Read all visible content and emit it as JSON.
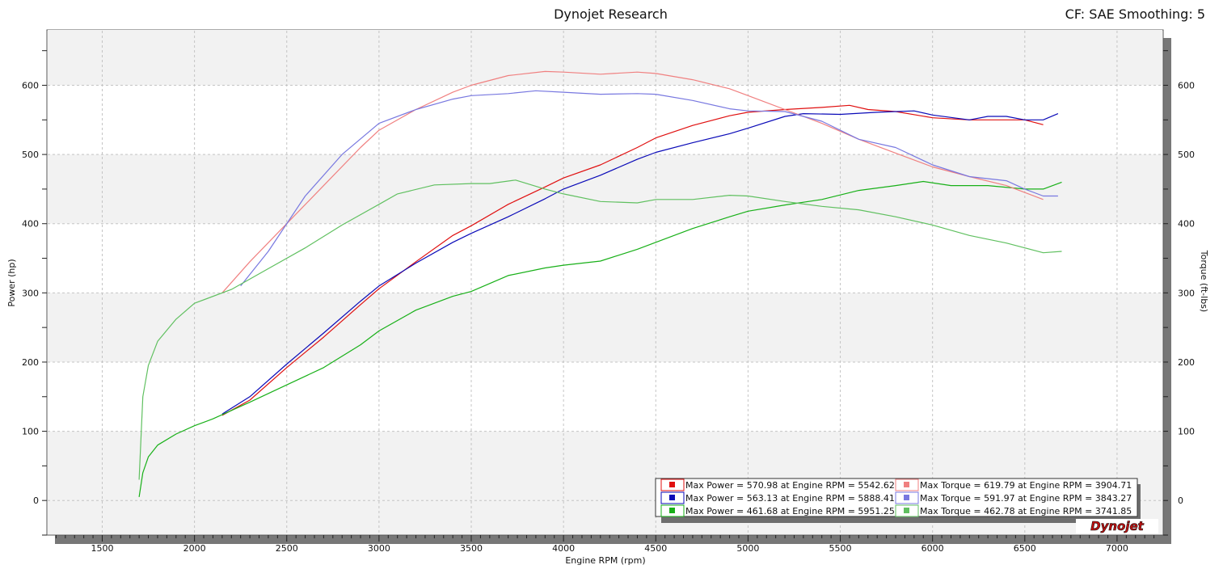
{
  "header": {
    "title": "Dynojet Research",
    "cf_smoothing": "CF: SAE Smoothing: 5"
  },
  "logo_text": "Dynojet",
  "chart_data": {
    "type": "line",
    "title": "Dynojet Research",
    "xlabel": "Engine RPM (rpm)",
    "ylabel_left": "Power (hp)",
    "ylabel_right": "Torque (ft-lbs)",
    "xlim": [
      1200,
      7250
    ],
    "ylim": [
      -50,
      680
    ],
    "x_ticks": [
      1500,
      2000,
      2500,
      3000,
      3500,
      4000,
      4500,
      5000,
      5500,
      6000,
      6500,
      7000
    ],
    "y_ticks": [
      0,
      100,
      200,
      300,
      400,
      500,
      600
    ],
    "grid": true,
    "legend_placement": "bottom-right",
    "series": [
      {
        "color": "#e01010",
        "kind": "power",
        "legend": "Max Power = 570.98 at Engine RPM = 5542.62",
        "points": [
          [
            2150,
            123
          ],
          [
            2300,
            145
          ],
          [
            2500,
            192
          ],
          [
            2700,
            236
          ],
          [
            2900,
            283
          ],
          [
            3000,
            306
          ],
          [
            3200,
            345
          ],
          [
            3400,
            383
          ],
          [
            3500,
            397
          ],
          [
            3700,
            428
          ],
          [
            3900,
            453
          ],
          [
            4000,
            466
          ],
          [
            4200,
            485
          ],
          [
            4400,
            510
          ],
          [
            4500,
            524
          ],
          [
            4700,
            542
          ],
          [
            4900,
            556
          ],
          [
            5000,
            561
          ],
          [
            5200,
            565
          ],
          [
            5400,
            568
          ],
          [
            5550,
            571
          ],
          [
            5650,
            565
          ],
          [
            5800,
            562
          ],
          [
            6000,
            553
          ],
          [
            6200,
            550
          ],
          [
            6400,
            550
          ],
          [
            6500,
            550
          ],
          [
            6600,
            543
          ]
        ]
      },
      {
        "color": "#0a0ab8",
        "kind": "power",
        "legend": "Max Power = 563.13 at Engine RPM = 5888.41",
        "points": [
          [
            2150,
            125
          ],
          [
            2300,
            150
          ],
          [
            2500,
            197
          ],
          [
            2700,
            242
          ],
          [
            2900,
            288
          ],
          [
            3000,
            310
          ],
          [
            3200,
            343
          ],
          [
            3400,
            373
          ],
          [
            3500,
            386
          ],
          [
            3700,
            410
          ],
          [
            3900,
            436
          ],
          [
            4000,
            450
          ],
          [
            4200,
            470
          ],
          [
            4400,
            493
          ],
          [
            4500,
            503
          ],
          [
            4700,
            517
          ],
          [
            4900,
            530
          ],
          [
            5000,
            538
          ],
          [
            5200,
            555
          ],
          [
            5300,
            559
          ],
          [
            5500,
            558
          ],
          [
            5700,
            561
          ],
          [
            5900,
            563
          ],
          [
            6000,
            557
          ],
          [
            6200,
            550
          ],
          [
            6300,
            555
          ],
          [
            6400,
            555
          ],
          [
            6500,
            550
          ],
          [
            6600,
            550
          ],
          [
            6680,
            559
          ]
        ]
      },
      {
        "color": "#18b018",
        "kind": "power",
        "legend": "Max Power = 461.68 at Engine RPM = 5951.25",
        "points": [
          [
            1700,
            5
          ],
          [
            1720,
            40
          ],
          [
            1750,
            63
          ],
          [
            1800,
            80
          ],
          [
            1900,
            96
          ],
          [
            2000,
            108
          ],
          [
            2100,
            118
          ],
          [
            2300,
            142
          ],
          [
            2500,
            167
          ],
          [
            2700,
            192
          ],
          [
            2900,
            225
          ],
          [
            3000,
            245
          ],
          [
            3200,
            275
          ],
          [
            3400,
            295
          ],
          [
            3500,
            302
          ],
          [
            3700,
            325
          ],
          [
            3900,
            336
          ],
          [
            4000,
            340
          ],
          [
            4200,
            346
          ],
          [
            4400,
            363
          ],
          [
            4500,
            373
          ],
          [
            4700,
            393
          ],
          [
            4900,
            410
          ],
          [
            5000,
            418
          ],
          [
            5200,
            427
          ],
          [
            5400,
            435
          ],
          [
            5600,
            448
          ],
          [
            5800,
            455
          ],
          [
            5950,
            461
          ],
          [
            6100,
            455
          ],
          [
            6300,
            455
          ],
          [
            6500,
            450
          ],
          [
            6600,
            450
          ],
          [
            6700,
            460
          ]
        ]
      },
      {
        "color": "#f08080",
        "kind": "torque",
        "legend": "Max Torque = 619.79 at Engine RPM = 3904.71",
        "points": [
          [
            2150,
            300
          ],
          [
            2300,
            345
          ],
          [
            2500,
            400
          ],
          [
            2700,
            455
          ],
          [
            2900,
            510
          ],
          [
            3000,
            535
          ],
          [
            3200,
            565
          ],
          [
            3400,
            590
          ],
          [
            3500,
            600
          ],
          [
            3700,
            614
          ],
          [
            3900,
            620
          ],
          [
            4000,
            619
          ],
          [
            4200,
            616
          ],
          [
            4400,
            619
          ],
          [
            4500,
            617
          ],
          [
            4700,
            608
          ],
          [
            4900,
            595
          ],
          [
            5000,
            585
          ],
          [
            5200,
            565
          ],
          [
            5400,
            545
          ],
          [
            5600,
            522
          ],
          [
            5800,
            502
          ],
          [
            6000,
            482
          ],
          [
            6200,
            468
          ],
          [
            6400,
            455
          ],
          [
            6500,
            445
          ],
          [
            6600,
            435
          ]
        ]
      },
      {
        "color": "#7878e0",
        "kind": "torque",
        "legend": "Max Torque = 591.97 at Engine RPM = 3843.27",
        "points": [
          [
            2250,
            310
          ],
          [
            2400,
            360
          ],
          [
            2600,
            440
          ],
          [
            2800,
            500
          ],
          [
            3000,
            545
          ],
          [
            3200,
            565
          ],
          [
            3400,
            580
          ],
          [
            3500,
            585
          ],
          [
            3700,
            588
          ],
          [
            3850,
            592
          ],
          [
            4000,
            590
          ],
          [
            4200,
            587
          ],
          [
            4400,
            588
          ],
          [
            4500,
            587
          ],
          [
            4700,
            578
          ],
          [
            4900,
            566
          ],
          [
            5000,
            563
          ],
          [
            5200,
            562
          ],
          [
            5400,
            548
          ],
          [
            5600,
            522
          ],
          [
            5800,
            510
          ],
          [
            6000,
            485
          ],
          [
            6200,
            468
          ],
          [
            6400,
            462
          ],
          [
            6500,
            450
          ],
          [
            6600,
            440
          ],
          [
            6680,
            440
          ]
        ]
      },
      {
        "color": "#60c060",
        "kind": "torque",
        "legend": "Max Torque = 462.78 at Engine RPM = 3741.85",
        "points": [
          [
            1700,
            30
          ],
          [
            1720,
            150
          ],
          [
            1750,
            195
          ],
          [
            1800,
            230
          ],
          [
            1900,
            262
          ],
          [
            2000,
            285
          ],
          [
            2200,
            305
          ],
          [
            2400,
            335
          ],
          [
            2600,
            365
          ],
          [
            2800,
            398
          ],
          [
            3000,
            428
          ],
          [
            3100,
            443
          ],
          [
            3300,
            456
          ],
          [
            3500,
            458
          ],
          [
            3600,
            458
          ],
          [
            3740,
            463
          ],
          [
            3900,
            450
          ],
          [
            4000,
            443
          ],
          [
            4200,
            432
          ],
          [
            4400,
            430
          ],
          [
            4500,
            435
          ],
          [
            4700,
            435
          ],
          [
            4900,
            441
          ],
          [
            5000,
            440
          ],
          [
            5200,
            432
          ],
          [
            5400,
            425
          ],
          [
            5600,
            420
          ],
          [
            5800,
            410
          ],
          [
            6000,
            398
          ],
          [
            6200,
            383
          ],
          [
            6400,
            372
          ],
          [
            6500,
            365
          ],
          [
            6600,
            358
          ],
          [
            6700,
            360
          ]
        ]
      }
    ]
  }
}
